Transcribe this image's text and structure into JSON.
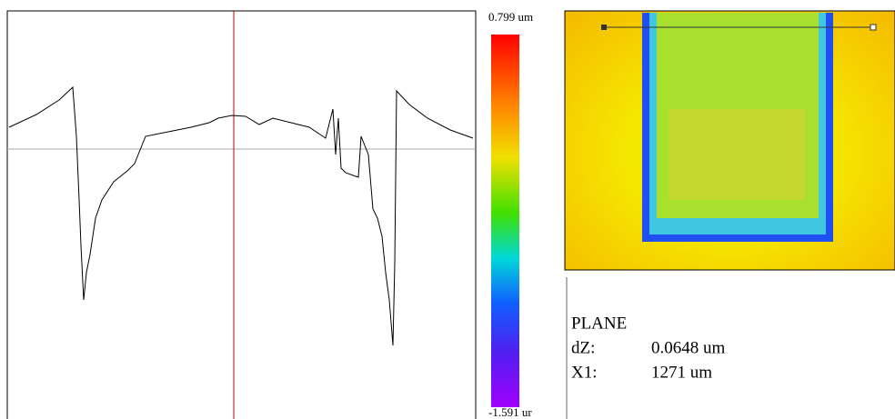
{
  "colorbar": {
    "max_label": "0.799 um",
    "min_label": "-1.591 ur"
  },
  "info": {
    "title": "PLANE",
    "rows": [
      {
        "label": "dZ:",
        "value": "0.0648 um"
      },
      {
        "label": "X1:",
        "value": "1271 um"
      }
    ]
  }
}
